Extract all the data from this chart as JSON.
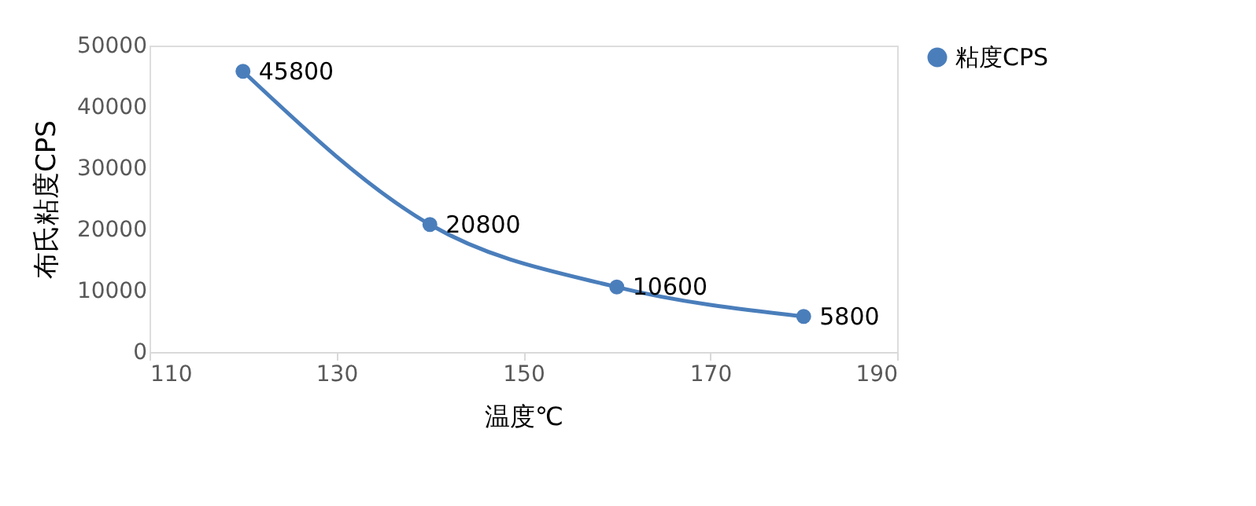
{
  "chart_data": {
    "type": "line",
    "xlabel": "温度℃",
    "ylabel": "布氏粘度CPS",
    "x": [
      120,
      140,
      160,
      180
    ],
    "series": [
      {
        "name": "粘度CPS",
        "color": "#4a7ebb",
        "values": [
          45800,
          20800,
          10600,
          5800
        ]
      }
    ],
    "xlim": [
      110,
      190
    ],
    "xticks": [
      110,
      130,
      150,
      170,
      190
    ],
    "ylim": [
      0,
      50000
    ],
    "yticks": [
      0,
      10000,
      20000,
      30000,
      40000,
      50000
    ],
    "grid": false,
    "legend": "right",
    "marker": "circle",
    "line_style": "solid",
    "data_labels": true
  }
}
